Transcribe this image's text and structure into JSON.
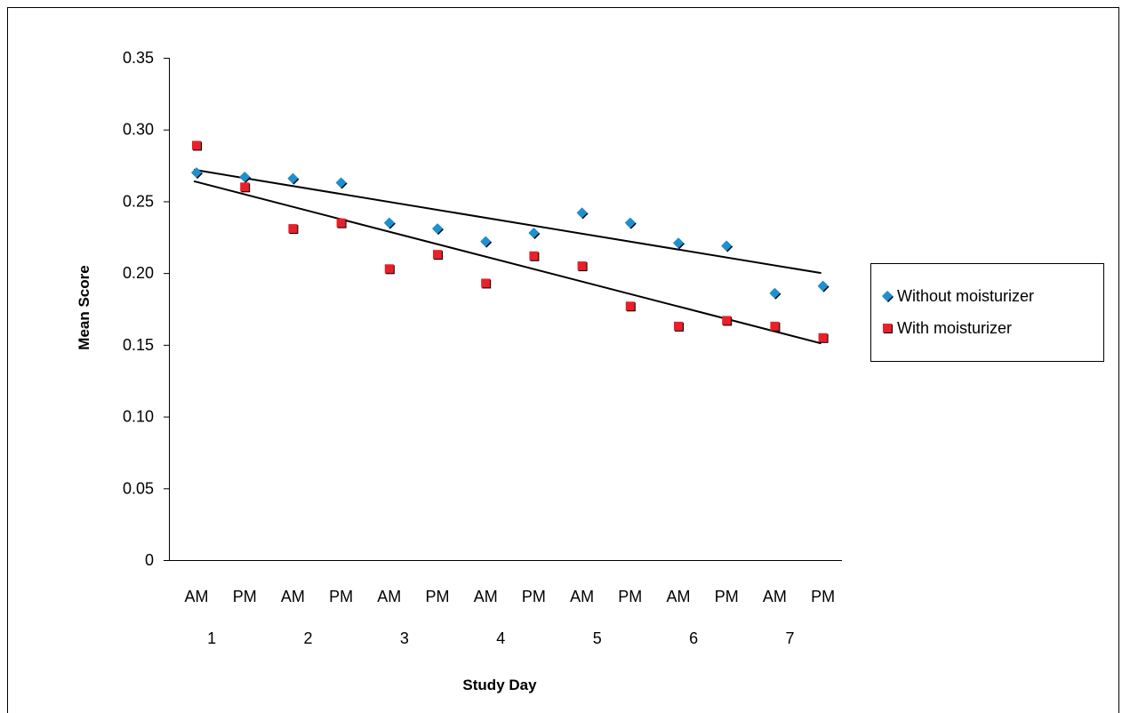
{
  "chart_data": {
    "type": "scatter",
    "title": "",
    "xlabel": "Study Day",
    "ylabel": "Mean Score",
    "ylim": [
      0,
      0.35
    ],
    "yticks": [
      "0",
      "0.05",
      "0.10",
      "0.15",
      "0.20",
      "0.25",
      "0.30",
      "0.35"
    ],
    "categories": [
      "AM",
      "PM",
      "AM",
      "PM",
      "AM",
      "PM",
      "AM",
      "PM",
      "AM",
      "PM",
      "AM",
      "PM",
      "AM",
      "PM"
    ],
    "day_labels": [
      "1",
      "2",
      "3",
      "4",
      "5",
      "6",
      "7"
    ],
    "grid": false,
    "legend_position": "right",
    "series": [
      {
        "name": "Without moisturizer",
        "color": "#1f8fd0",
        "marker": "diamond",
        "values": [
          0.27,
          0.267,
          0.266,
          0.263,
          0.235,
          0.231,
          0.222,
          0.228,
          0.242,
          0.235,
          0.221,
          0.219,
          0.186,
          0.191
        ],
        "trendline": [
          0.272,
          0.2
        ]
      },
      {
        "name": "With moisturizer",
        "color": "#e8202a",
        "marker": "square",
        "values": [
          0.289,
          0.26,
          0.231,
          0.235,
          0.203,
          0.213,
          0.193,
          0.212,
          0.205,
          0.177,
          0.163,
          0.167,
          0.163,
          0.155
        ],
        "trendline": [
          0.264,
          0.151
        ]
      }
    ]
  }
}
